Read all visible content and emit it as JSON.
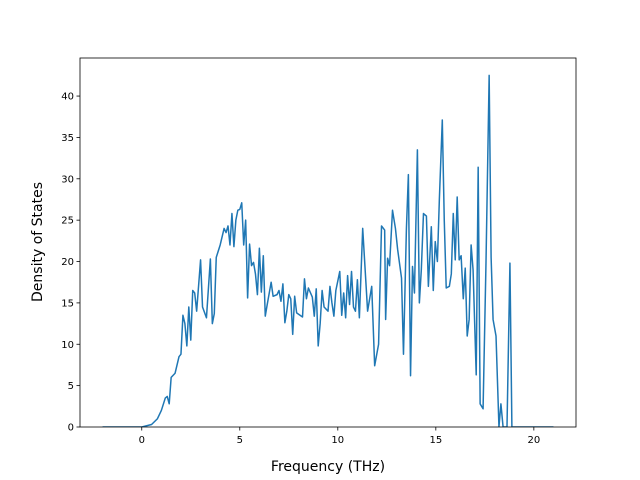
{
  "chart_data": {
    "type": "line",
    "xlabel": "Frequency (THz)",
    "ylabel": "Density of States",
    "x": [
      -2,
      -1,
      0,
      0.5,
      0.8,
      1.0,
      1.2,
      1.3,
      1.4,
      1.5,
      1.7,
      1.9,
      2.0,
      2.1,
      2.2,
      2.3,
      2.4,
      2.5,
      2.6,
      2.7,
      2.8,
      3.0,
      3.1,
      3.3,
      3.5,
      3.6,
      3.7,
      3.8,
      4.0,
      4.2,
      4.3,
      4.4,
      4.5,
      4.6,
      4.7,
      4.8,
      4.9,
      5.0,
      5.1,
      5.2,
      5.3,
      5.4,
      5.5,
      5.6,
      5.7,
      5.8,
      5.9,
      6.0,
      6.1,
      6.2,
      6.3,
      6.4,
      6.6,
      6.7,
      6.9,
      7.0,
      7.1,
      7.2,
      7.3,
      7.4,
      7.5,
      7.6,
      7.7,
      7.8,
      7.9,
      8.2,
      8.3,
      8.4,
      8.5,
      8.7,
      8.8,
      8.9,
      9.0,
      9.1,
      9.2,
      9.3,
      9.5,
      9.6,
      9.7,
      9.8,
      9.9,
      10.1,
      10.2,
      10.3,
      10.4,
      10.5,
      10.6,
      10.7,
      10.8,
      10.9,
      11.0,
      11.1,
      11.27,
      11.52,
      11.73,
      11.88,
      12.08,
      12.23,
      12.39,
      12.44,
      12.54,
      12.64,
      12.79,
      12.94,
      13.05,
      13.25,
      13.35,
      13.5,
      13.6,
      13.71,
      13.81,
      13.91,
      14.06,
      14.16,
      14.26,
      14.37,
      14.52,
      14.62,
      14.77,
      14.87,
      14.97,
      15.08,
      15.18,
      15.33,
      15.43,
      15.53,
      15.69,
      15.79,
      15.89,
      15.99,
      16.09,
      16.19,
      16.29,
      16.4,
      16.5,
      16.6,
      16.7,
      16.8,
      16.9,
      17.06,
      17.16,
      17.26,
      17.41,
      17.56,
      17.72,
      17.82,
      17.92,
      18.07,
      18.22,
      18.32,
      18.43,
      18.63,
      18.78,
      18.88,
      19.5,
      21
    ],
    "series": [
      {
        "color": "#1f77b4",
        "values": [
          0,
          0,
          0,
          0.3,
          1,
          2,
          3.5,
          3.7,
          2.8,
          6,
          6.5,
          8.5,
          8.8,
          13.5,
          12.5,
          9.8,
          14.5,
          10.5,
          16.5,
          16.2,
          14,
          20.2,
          14.5,
          13.2,
          20.3,
          12.5,
          13.7,
          20.5,
          22,
          24,
          23.5,
          24.3,
          22,
          25.8,
          21.8,
          25,
          26.2,
          26.3,
          27.1,
          22,
          25,
          15.6,
          22.1,
          19.5,
          19.9,
          18.5,
          16,
          21.6,
          16.3,
          20.7,
          13.4,
          14.8,
          17.5,
          15.8,
          16,
          16.5,
          15.2,
          17.3,
          12.6,
          14,
          16,
          15.5,
          11.2,
          15.8,
          13.8,
          13.3,
          17.9,
          15.5,
          16.8,
          15.7,
          13.4,
          16.7,
          9.8,
          12.5,
          16.5,
          14.5,
          14,
          17,
          15,
          13.4,
          16.5,
          18.8,
          13.5,
          16.2,
          13.2,
          18.3,
          14.8,
          18.8,
          14.5,
          14,
          17.8,
          13.2,
          24,
          14,
          17,
          7.4,
          10,
          24.3,
          23.8,
          13,
          20.4,
          19.5,
          26.2,
          24,
          21.5,
          18,
          8.8,
          24,
          30.5,
          6.2,
          19.4,
          16.2,
          33.5,
          15,
          19,
          25.8,
          25.5,
          17,
          24.2,
          16.5,
          22.4,
          20,
          27.5,
          37.1,
          25,
          16.8,
          17,
          18.5,
          25.8,
          20.2,
          27.8,
          20.2,
          20.7,
          15.5,
          19.2,
          11,
          13,
          22,
          19,
          6.3,
          31.4,
          2.8,
          2.2,
          20,
          42.5,
          20.5,
          13,
          11,
          0,
          2.8,
          0,
          0,
          19.8,
          0,
          0,
          0
        ]
      }
    ],
    "xlim": [
      -3.15,
      22.15
    ],
    "xticks": [
      0,
      5,
      10,
      15,
      20
    ],
    "ylim": [
      0,
      44.6
    ],
    "yticks": [
      0,
      5,
      10,
      15,
      20,
      25,
      30,
      35,
      40
    ]
  }
}
